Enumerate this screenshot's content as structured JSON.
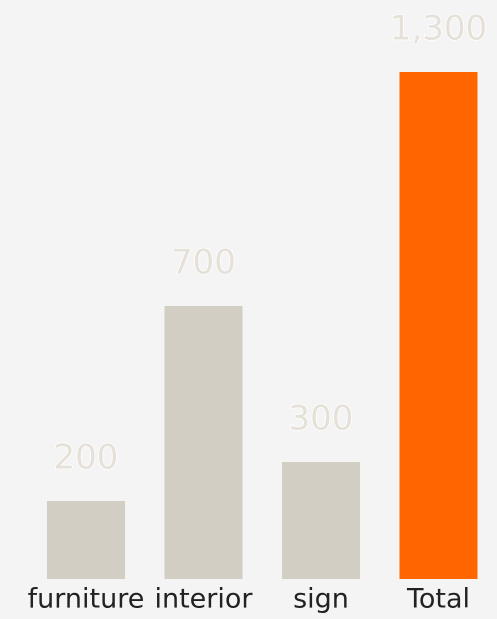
{
  "chart_data": {
    "type": "bar",
    "categories": [
      "furniture",
      "interior",
      "sign",
      "Total"
    ],
    "values": [
      200,
      700,
      300,
      1300
    ],
    "value_labels": [
      "200",
      "700",
      "300",
      "1,300"
    ],
    "colors": [
      "#d3cec4",
      "#d3cec4",
      "#d3cec4",
      "#ff6600"
    ]
  }
}
